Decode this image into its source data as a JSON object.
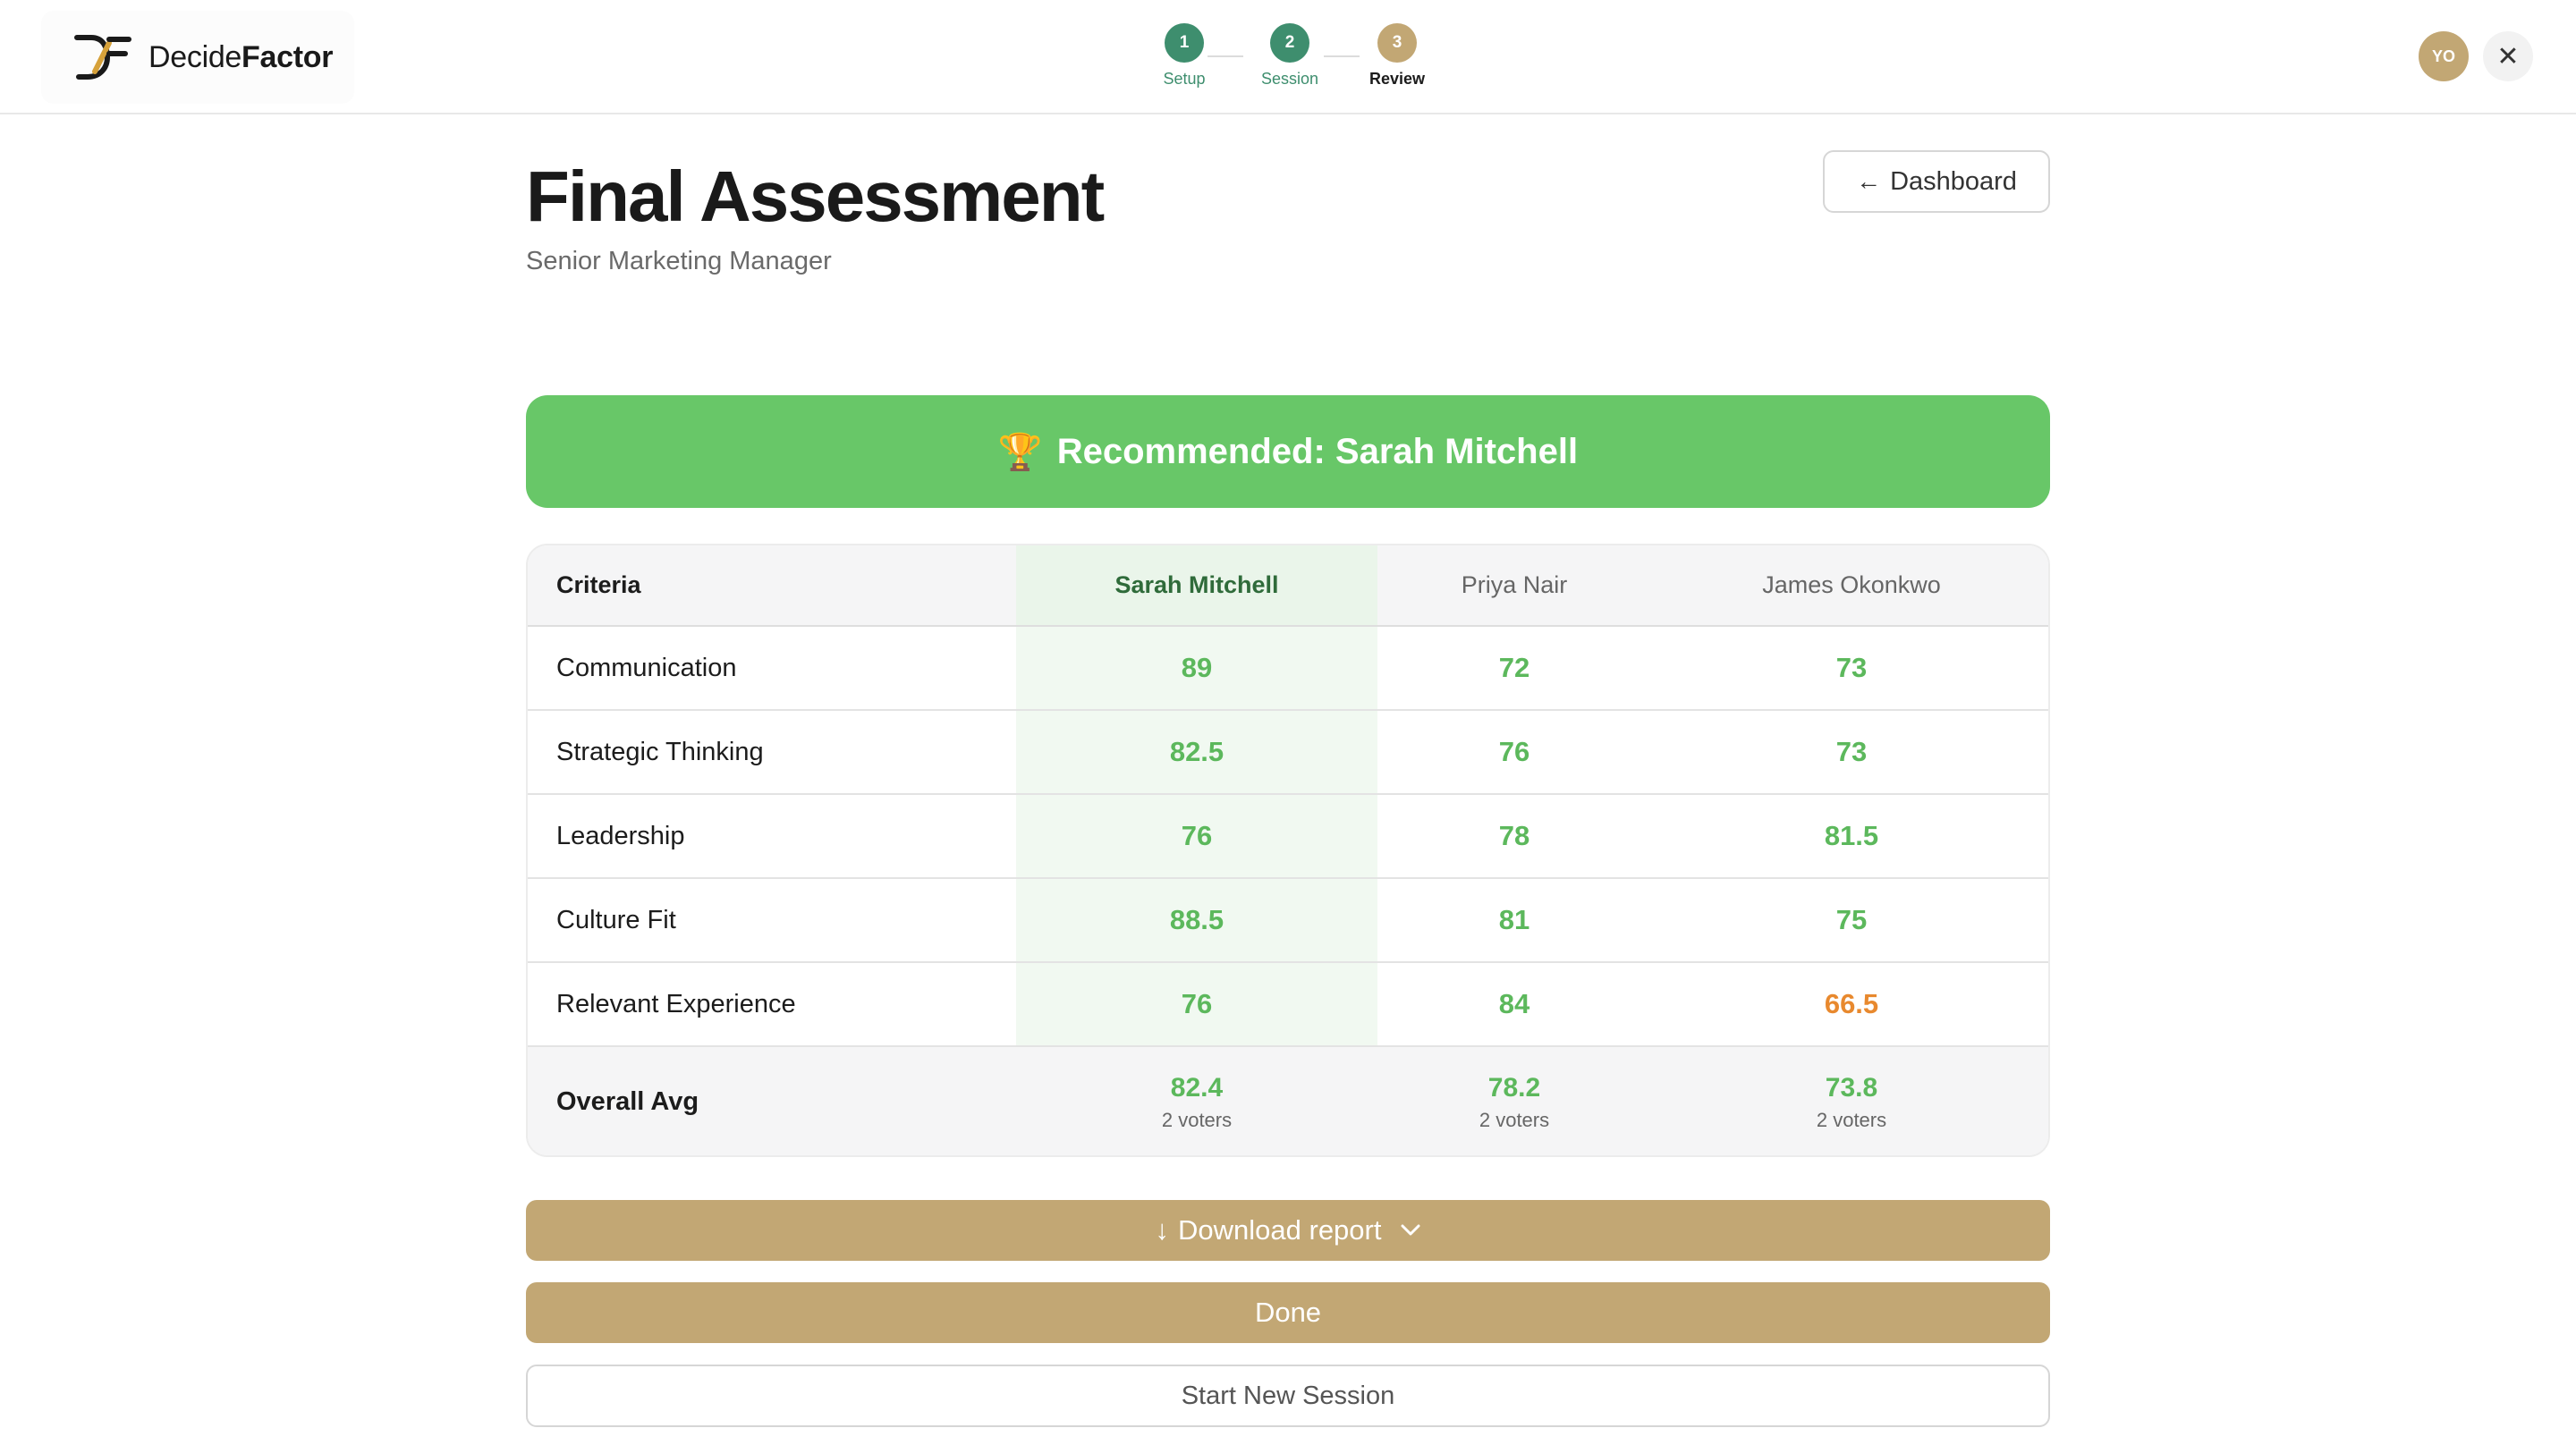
{
  "brand": {
    "name_regular": "Decide",
    "name_bold": "Factor",
    "icon": "decidefactor-logo-icon"
  },
  "stepper": {
    "steps": [
      {
        "number": "1",
        "label": "Setup",
        "state": "complete"
      },
      {
        "number": "2",
        "label": "Session",
        "state": "complete"
      },
      {
        "number": "3",
        "label": "Review",
        "state": "current"
      }
    ]
  },
  "user": {
    "initials": "YO"
  },
  "close": {
    "icon": "close-icon",
    "glyph": "✕"
  },
  "header": {
    "title": "Final Assessment",
    "subtitle": "Senior Marketing Manager",
    "dashboard_arrow": "←",
    "dashboard_label": "Dashboard"
  },
  "recommendation": {
    "trophy": "🏆",
    "text": "Recommended: Sarah Mitchell"
  },
  "scores": {
    "criteria_header": "Criteria",
    "candidates": [
      "Sarah Mitchell",
      "Priya Nair",
      "James Okonkwo"
    ],
    "rows": [
      {
        "criterion": "Communication",
        "values": [
          "89",
          "72",
          "73"
        ]
      },
      {
        "criterion": "Strategic Thinking",
        "values": [
          "82.5",
          "76",
          "73"
        ]
      },
      {
        "criterion": "Leadership",
        "values": [
          "76",
          "78",
          "81.5"
        ]
      },
      {
        "criterion": "Culture Fit",
        "values": [
          "88.5",
          "81",
          "75"
        ]
      },
      {
        "criterion": "Relevant Experience",
        "values": [
          "76",
          "84",
          "66.5"
        ]
      }
    ],
    "overall": {
      "label": "Overall Avg",
      "values": [
        "82.4",
        "78.2",
        "73.8"
      ],
      "voters": [
        "2 voters",
        "2 voters",
        "2 voters"
      ]
    },
    "colors": {
      "good": "#5cb85c",
      "warning": "#e8892e",
      "highlight": "#f1f9f1"
    }
  },
  "actions": {
    "download_arrow": "↓",
    "download_label": "Download report",
    "download_chevron": "⌄",
    "done_label": "Done",
    "new_session_label": "Start New Session"
  },
  "colors": {
    "accent_gold": "#c2a774",
    "success_green": "#68c768",
    "step_green": "#3e8e6e"
  }
}
